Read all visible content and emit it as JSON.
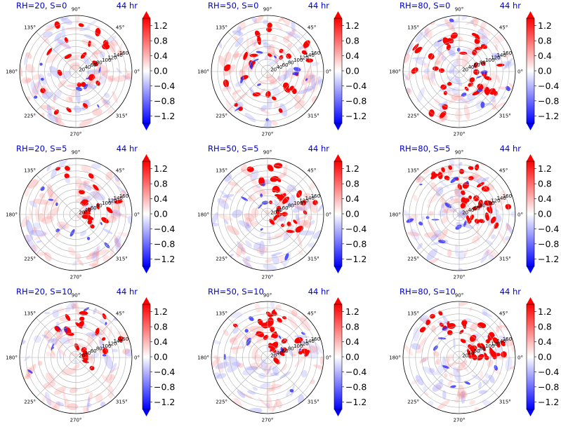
{
  "chart_data": {
    "type": "polar-contourf",
    "rows": 3,
    "cols": 3,
    "angular_ticks": [
      "0°",
      "45°",
      "90°",
      "135°",
      "180°",
      "225°",
      "270°",
      "315°"
    ],
    "radial_ticks": [
      20,
      40,
      60,
      80,
      100,
      120,
      140,
      160
    ],
    "rmax": 180,
    "colorbar": {
      "cmap": "bwr",
      "ticks": [
        "1.2",
        "0.8",
        "0.4",
        "0.0",
        "−0.4",
        "−0.8",
        "−1.2"
      ],
      "vmin": -1.4,
      "vmax": 1.4,
      "extend": "both"
    },
    "panels": [
      {
        "title": "RH=20, S=0",
        "time": "44 hr",
        "rh": 20,
        "shear": 0
      },
      {
        "title": "RH=50, S=0",
        "time": "44 hr",
        "rh": 50,
        "shear": 0
      },
      {
        "title": "RH=80, S=0",
        "time": "44 hr",
        "rh": 80,
        "shear": 0
      },
      {
        "title": "RH=20, S=5",
        "time": "44 hr",
        "rh": 20,
        "shear": 5
      },
      {
        "title": "RH=50, S=5",
        "time": "44 hr",
        "rh": 50,
        "shear": 5
      },
      {
        "title": "RH=80, S=5",
        "time": "44 hr",
        "rh": 80,
        "shear": 5
      },
      {
        "title": "RH=20, S=10",
        "time": "44 hr",
        "rh": 20,
        "shear": 10
      },
      {
        "title": "RH=50, S=10",
        "time": "44 hr",
        "rh": 50,
        "shear": 10
      },
      {
        "title": "RH=80, S=10",
        "time": "44 hr",
        "rh": 80,
        "shear": 10
      }
    ]
  }
}
